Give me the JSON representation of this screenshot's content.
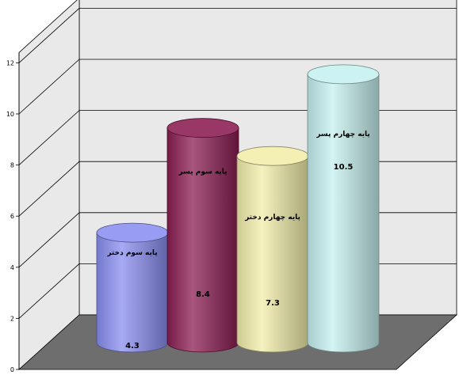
{
  "chart_data": {
    "type": "bar",
    "categories": [
      "پایه سوم دختر",
      "پایه سوم پسر",
      "پایه چهارم دختر",
      "پایه چهارم پسر"
    ],
    "values": [
      4.3,
      8.4,
      7.3,
      10.5
    ],
    "value_labels": [
      "4.3",
      "8.4",
      "7.3",
      "10.5"
    ],
    "ylim": [
      0,
      12
    ],
    "yticks": [
      "0",
      "2",
      "4",
      "6",
      "8",
      "10",
      "12"
    ],
    "grid": true,
    "shape": "3d-cylinder",
    "colors": [
      "#8a8ef0",
      "#8b1d52",
      "#f2eeaa",
      "#c6f0f0"
    ],
    "background_color": "#e9e9e9",
    "floor_color": "#6e6e6e"
  }
}
